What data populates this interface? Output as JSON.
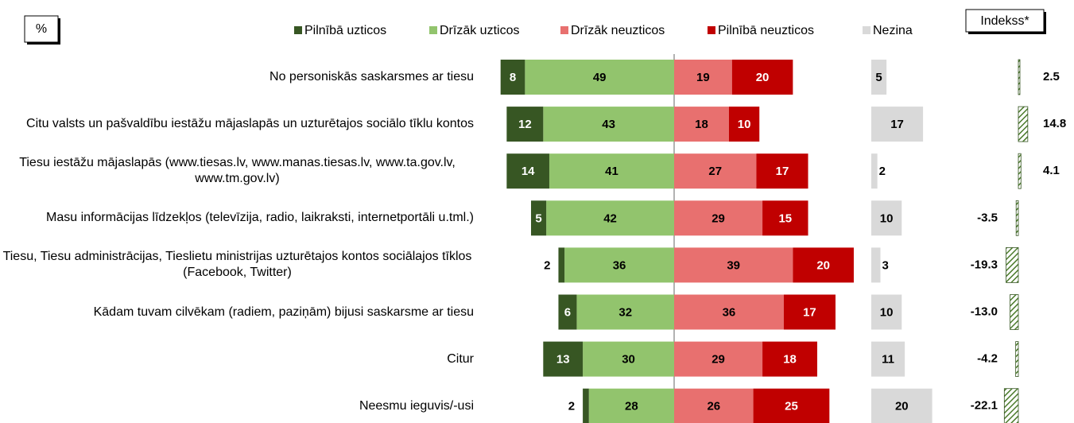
{
  "chart_data": {
    "type": "diverging-bar",
    "unit_label": "%",
    "categories": [
      "No personiskās saskarsmes ar tiesu",
      "Citu valsts un pašvaldību iestāžu mājaslapās un uzturētajos sociālo tīklu kontos",
      "Tiesu iestāžu mājaslapās (www.tiesas.lv, www.manas.tiesas.lv, www.ta.gov.lv, www.tm.gov.lv)",
      "Masu informācijas līdzekļos (televīzija, radio, laikraksti, internetportāli u.tml.)",
      "Tiesu, Tiesu administrācijas, Tieslietu ministrijas uzturētajos kontos sociālajos tīklos (Facebook, Twitter)",
      "Kādam tuvam cilvēkam (radiem, paziņām) bijusi saskarsme ar tiesu",
      "Citur",
      "Neesmu ieguvis/-usi"
    ],
    "series": [
      {
        "name": "Pilnībā uzticos",
        "color": "#375623",
        "values": [
          8,
          12,
          14,
          5,
          2,
          6,
          13,
          2
        ]
      },
      {
        "name": "Drīzāk uzticos",
        "color": "#92c46d",
        "values": [
          49,
          43,
          41,
          42,
          36,
          32,
          30,
          28
        ]
      },
      {
        "name": "Drīzāk neuzticos",
        "color": "#e8706f",
        "values": [
          19,
          18,
          27,
          29,
          39,
          36,
          29,
          26
        ]
      },
      {
        "name": "Pilnībā neuzticos",
        "color": "#c00000",
        "values": [
          20,
          10,
          17,
          15,
          20,
          17,
          18,
          25
        ]
      },
      {
        "name": "Nezina",
        "color": "#d9d9d9",
        "values": [
          5,
          17,
          2,
          10,
          3,
          10,
          11,
          20
        ]
      }
    ],
    "index": {
      "name": "Indekss*",
      "color": "#375623",
      "values": [
        2.5,
        14.8,
        4.1,
        -3.5,
        -19.3,
        -13.0,
        -4.2,
        -22.1
      ],
      "value_labels": [
        "2.5",
        "14.8",
        "4.1",
        "-3.5",
        "-19.3",
        "-13.0",
        "-4.2",
        "-22.1"
      ]
    }
  }
}
